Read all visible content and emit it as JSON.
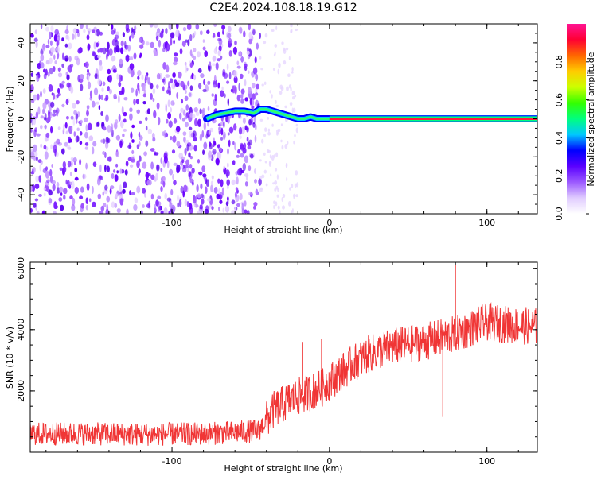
{
  "title": "C2E4.2024.108.18.19.G12",
  "chart_data": [
    {
      "type": "heatmap",
      "xlabel": "Height of straight line (km)",
      "ylabel": "Frequency (Hz)",
      "xlim": [
        -190,
        132
      ],
      "ylim": [
        -50,
        50
      ],
      "x_ticks": [
        -100,
        0,
        100
      ],
      "y_ticks": [
        -40,
        -20,
        0,
        20,
        40
      ],
      "colorbar": {
        "label": "Normalized spectral amplitude",
        "range": [
          0,
          1
        ],
        "ticks": [
          "0.0",
          "0.2",
          "0.4",
          "0.6",
          "0.8"
        ],
        "colors": [
          "#ffffff",
          "#e0ccff",
          "#9b59ff",
          "#5a00ff",
          "#0000ff",
          "#00c8ff",
          "#00ff7f",
          "#33ff00",
          "#ccff00",
          "#ffcc00",
          "#ff6600",
          "#ff0033",
          "#ff1493"
        ]
      },
      "noise_region": {
        "x_from": -190,
        "x_to": -44,
        "dense": true
      },
      "sparse_region": {
        "x_from": -44,
        "x_to": -20
      },
      "signal_track": {
        "x": [
          -78,
          -72,
          -66,
          -60,
          -54,
          -48,
          -44,
          -40,
          -36,
          -32,
          -28,
          -24,
          -20,
          -16,
          -12,
          -8,
          -4,
          0,
          20,
          40,
          60,
          80,
          100,
          120,
          132
        ],
        "freq": [
          0,
          2,
          3,
          4,
          4,
          3,
          5,
          5,
          4,
          3,
          2,
          1,
          0,
          0,
          1,
          0,
          0,
          0,
          0,
          0,
          0,
          0,
          0,
          0,
          0
        ]
      }
    },
    {
      "type": "line",
      "xlabel": "Height of straight line (km)",
      "ylabel": "SNR (10 * v/v)",
      "xlim": [
        -190,
        132
      ],
      "ylim": [
        0,
        6200
      ],
      "x_ticks": [
        -100,
        0,
        100
      ],
      "y_ticks": [
        2000,
        4000,
        6000
      ],
      "color": "#f03535",
      "trend": {
        "x": [
          -190,
          -160,
          -120,
          -80,
          -60,
          -45,
          -35,
          -25,
          -15,
          -5,
          5,
          15,
          25,
          40,
          60,
          80,
          100,
          115,
          132
        ],
        "y": [
          600,
          600,
          580,
          600,
          650,
          700,
          1400,
          1700,
          1900,
          2100,
          2500,
          2900,
          3200,
          3450,
          3600,
          3850,
          4250,
          4150,
          4100
        ]
      },
      "noise_amplitude": [
        {
          "x_to": -40,
          "amp": 380
        },
        {
          "x_to": 132,
          "amp": 620
        }
      ],
      "spikes": [
        {
          "x": -17,
          "y": 3600
        },
        {
          "x": -5,
          "y": 3700
        },
        {
          "x": 72,
          "y": 1150
        },
        {
          "x": 80,
          "y": 6100
        }
      ]
    }
  ]
}
